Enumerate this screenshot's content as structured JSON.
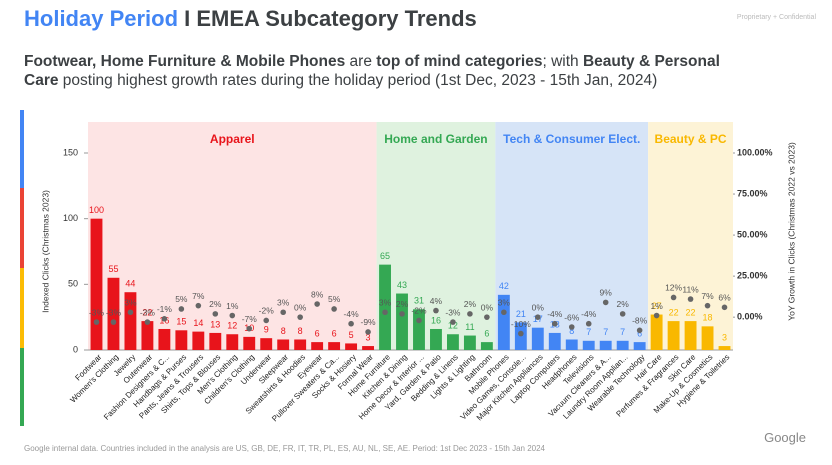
{
  "title_highlight": "Holiday Period",
  "title_rest": " I EMEA Subcategory Trends",
  "confidential": "Proprietary + Confidential",
  "subtitle": [
    [
      {
        "text": "Footwear, Home Furniture & Mobile Phones",
        "bold": true
      },
      {
        "text": " are ",
        "bold": false
      },
      {
        "text": "top of mind categories",
        "bold": true
      },
      {
        "text": "; with ",
        "bold": false
      },
      {
        "text": "Beauty & Personal",
        "bold": true
      }
    ],
    [
      {
        "text": "Care",
        "bold": true
      },
      {
        "text": " posting highest growth rates during the holiday period (1st Dec, 2023 - 15th Jan, 2024)",
        "bold": false
      }
    ]
  ],
  "footnote": "Google internal data. Countries included in the analysis are US, GB, DE, FR, IT, TR, PL, ES, AU, NL, SE, AE. Period: 1st Dec 2023 - 15th Jan 2024",
  "logo": "Google",
  "chart_data": {
    "type": "bar",
    "y_label": "Indexed Clicks (Christmas 2023)",
    "y2_label": "YoY Growth in Clicks (Christmas 2022 vs 2023)",
    "ylim": [
      0,
      150
    ],
    "yticks": [
      0,
      50,
      100,
      150
    ],
    "y2lim": [
      -20,
      100
    ],
    "y2ticks": [
      {
        "value": 0,
        "label": "0.00%"
      },
      {
        "value": 25,
        "label": "25.00%"
      },
      {
        "value": 50,
        "label": "50.00%"
      },
      {
        "value": 75,
        "label": "75.00%"
      },
      {
        "value": 100,
        "label": "100.00%"
      }
    ],
    "dot_color": "#666666",
    "groups": [
      {
        "label": "Apparel",
        "color": "#e8141b",
        "background": "#fde4e4",
        "categories": [
          "Footwear",
          "Women's Clothing",
          "Jewelry",
          "Outerwear",
          "Fashion Designers & C...",
          "Handbags & Purses",
          "Pants, Jeans & Trousers",
          "Shirts, Tops & Blouses",
          "Men's Clothing",
          "Children's Clothing",
          "Underwear",
          "Sleepwear",
          "Sweatshirts & Hoodies",
          "Eyewear",
          "Pullover Sweaters & Ca...",
          "Socks & Hosiery",
          "Formal Wear"
        ],
        "values": [
          100,
          55,
          44,
          22,
          16,
          15,
          14,
          13,
          12,
          10,
          9,
          8,
          8,
          6,
          6,
          5,
          3
        ],
        "y2values": [
          -3,
          -3,
          3,
          -3,
          -1,
          5,
          7,
          2,
          1,
          -7,
          -2,
          3,
          0,
          8,
          5,
          -4,
          -9
        ],
        "y2value_labels": [
          "-3%",
          "-3%",
          "3%",
          "-3%",
          "-1%",
          "5%",
          "7%",
          "2%",
          "1%",
          "-7%",
          "-2%",
          "3%",
          "0%",
          "8%",
          "5%",
          "-4%",
          "-9%"
        ]
      },
      {
        "label": "Home and Garden",
        "color": "#34a853",
        "background": "#dff2df",
        "categories": [
          "Home Furniture",
          "Kitchen & Dining",
          "Home Decor & Interior ...",
          "Yard, Garden & Patio",
          "Bedding & Linens",
          "Lights & Lighting",
          "Bathroom"
        ],
        "values": [
          65,
          43,
          31,
          16,
          12,
          11,
          6
        ],
        "y2values": [
          3,
          2,
          -2,
          4,
          -3,
          2,
          0
        ],
        "y2value_labels": [
          "3%",
          "2%",
          "-2%",
          "4%",
          "-3%",
          "2%",
          "0%"
        ]
      },
      {
        "label": "Tech & Consumer Elect.",
        "color": "#4285f4",
        "background": "#d6e4f7",
        "categories": [
          "Mobile Phones",
          "Video Games, Console...",
          "Major Kitchen Appliances",
          "Laptop Computers",
          "Headphones",
          "Televisions",
          "Vacuum Cleaners & A...",
          "Laundry Room Applian...",
          "Wearable Technology"
        ],
        "values": [
          42,
          21,
          17,
          13,
          8,
          7,
          7,
          7,
          6
        ],
        "y2values": [
          3,
          -10,
          0,
          -4,
          -6,
          -4,
          9,
          2,
          -8
        ],
        "y2value_labels": [
          "3%",
          "-10%",
          "0%",
          "-4%",
          "-6%",
          "-4%",
          "9%",
          "2%",
          "-8%"
        ]
      },
      {
        "label": "Beauty & PC",
        "color": "#f9b800",
        "background": "#fdf3d6",
        "categories": [
          "Hair Care",
          "Perfumes & Fragrances",
          "Skin Care",
          "Make-Up & Cosmetics",
          "Hygiene & Toiletries"
        ],
        "values": [
          27,
          22,
          22,
          18,
          3
        ],
        "y2values": [
          1,
          12,
          11,
          7,
          6
        ],
        "y2value_labels": [
          "1%",
          "12%",
          "11%",
          "7%",
          "6%"
        ]
      }
    ]
  }
}
